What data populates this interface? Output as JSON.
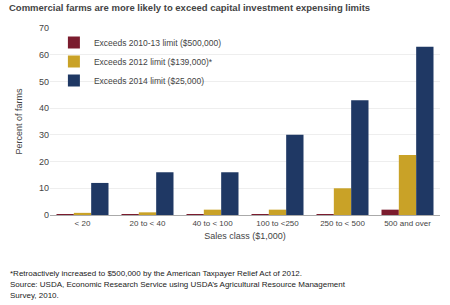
{
  "chart_data": {
    "type": "bar",
    "title": "Commercial farms are more likely to exceed capital investment expensing limits",
    "y_label": "Percent of farms",
    "x_label": "Sales class ($1,000)",
    "categories": [
      "< 20",
      "20 to < 40",
      "40 to < 100",
      "100 to <250",
      "250 to < 500",
      "500 and over"
    ],
    "series": [
      {
        "name": "Exceeds 2010-13 limit ($500,000)",
        "color": "#7b1c2e",
        "values": [
          0.2,
          0.2,
          0.2,
          0.2,
          0.2,
          2.0
        ]
      },
      {
        "name": "Exceeds 2012 limit ($139,000)*",
        "color": "#c9a227",
        "values": [
          0.8,
          1.0,
          2.0,
          2.0,
          10.0,
          22.5
        ]
      },
      {
        "name": "Exceeds 2014 limit ($25,000)",
        "color": "#1f3864",
        "values": [
          12.0,
          16.0,
          16.0,
          30.0,
          43.0,
          63.0
        ]
      }
    ],
    "ylim": [
      0,
      70
    ],
    "yticks": [
      0,
      10,
      20,
      30,
      40,
      50,
      60,
      70
    ],
    "grid": true,
    "legend": "upper left",
    "annotations": [
      "*Retroactively increased to $500,000 by the American Taxpayer Relief Act of 2012.",
      "Source: USDA, Economic Research Service using USDA’s Agricultural Resource Management",
      "Survey, 2010."
    ]
  }
}
